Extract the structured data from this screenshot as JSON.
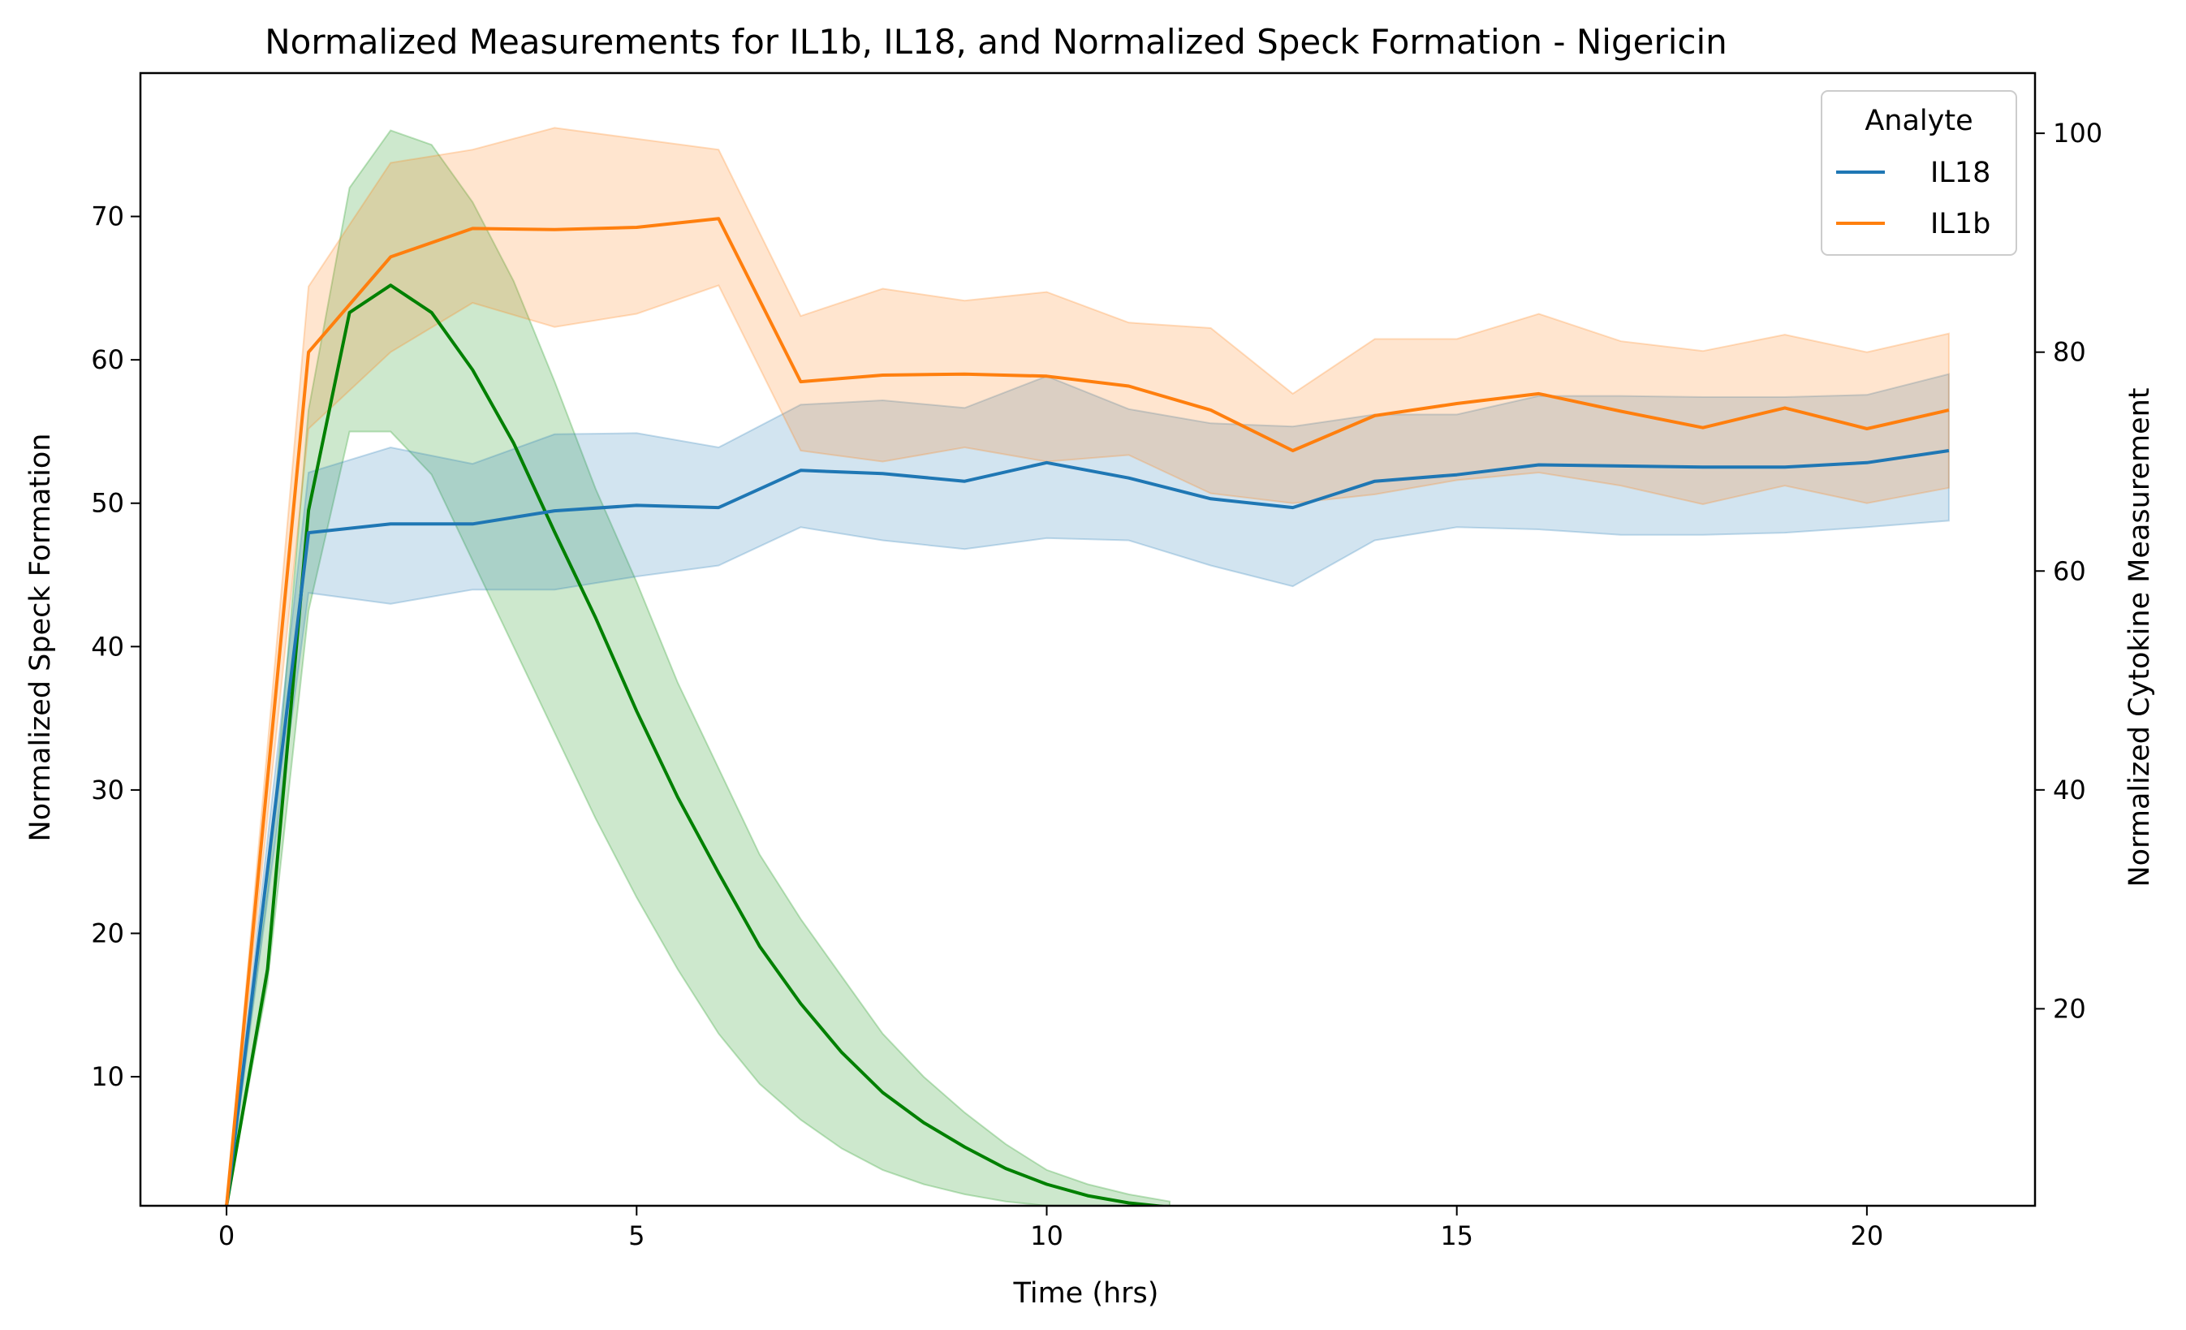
{
  "chart_data": {
    "type": "line",
    "title": "Normalized Measurements for IL1b, IL18, and Normalized Speck Formation - Nigericin",
    "xlabel": "Time (hrs)",
    "ylabel_left": "Normalized Speck Formation",
    "ylabel_right": "Normalized Cytokine Measurement",
    "xlim": [
      -1.05,
      22.05
    ],
    "ylim_left": [
      1,
      80
    ],
    "ylim_right": [
      2,
      105.5
    ],
    "x_ticks": [
      0,
      5,
      10,
      15,
      20
    ],
    "y_left_ticks": [
      10,
      20,
      30,
      40,
      50,
      60,
      70
    ],
    "y_right_ticks": [
      20,
      40,
      60,
      80,
      100
    ],
    "grid": false,
    "legend": {
      "title": "Analyte",
      "placement": "top-right",
      "entries": [
        "IL18",
        "IL1b"
      ]
    },
    "speck": {
      "axis": "left",
      "color": "#008000",
      "band_color": "#2ca02c",
      "x": [
        0,
        0.5,
        1,
        1.5,
        2,
        2.5,
        3,
        3.5,
        4,
        4.5,
        5,
        5.5,
        6,
        6.5,
        7,
        7.5,
        8,
        8.5,
        9,
        9.5,
        10,
        10.5,
        11,
        11.5
      ],
      "values": [
        1,
        17.5,
        49.5,
        63.3,
        65.2,
        63.3,
        59.3,
        54.2,
        48,
        42,
        35.5,
        29.5,
        24.2,
        19.1,
        15.1,
        11.7,
        8.9,
        6.8,
        5.1,
        3.6,
        2.5,
        1.7,
        1.2,
        0.9
      ],
      "lower": [
        1,
        16.5,
        42.5,
        55,
        55,
        52,
        46,
        40,
        34,
        28,
        22.5,
        17.5,
        13,
        9.5,
        7,
        5,
        3.5,
        2.5,
        1.8,
        1.3,
        1,
        0.8,
        0.7,
        0.7
      ],
      "upper": [
        1,
        23,
        56.5,
        72,
        76,
        75,
        71,
        65.5,
        58.5,
        51,
        44.5,
        37.5,
        31.5,
        25.5,
        21,
        17,
        13,
        10,
        7.5,
        5.3,
        3.5,
        2.5,
        1.8,
        1.3
      ]
    },
    "series": [
      {
        "name": "IL18",
        "axis": "right",
        "color": "#1f77b4",
        "x": [
          0,
          1,
          2,
          3,
          4,
          5,
          6,
          7,
          8,
          9,
          10,
          11,
          12,
          13,
          14,
          15,
          16,
          17,
          18,
          19,
          20,
          21
        ],
        "values": [
          2,
          63.5,
          64.3,
          64.3,
          65.5,
          66,
          65.8,
          69.2,
          68.9,
          68.2,
          69.9,
          68.5,
          66.6,
          65.8,
          68.2,
          68.8,
          69.7,
          69.6,
          69.5,
          69.5,
          69.9,
          71
        ],
        "lower": [
          2,
          58,
          57,
          58.3,
          58.3,
          59.5,
          60.5,
          64,
          62.8,
          62,
          63,
          62.8,
          60.5,
          58.6,
          62.8,
          64,
          63.8,
          63.3,
          63.3,
          63.5,
          64,
          64.6
        ],
        "upper": [
          2,
          69,
          71.3,
          69.8,
          72.5,
          72.6,
          71.3,
          75.2,
          75.6,
          74.9,
          77.8,
          74.8,
          73.5,
          73.2,
          74.3,
          74.3,
          76,
          76,
          75.9,
          75.9,
          76.1,
          78
        ]
      },
      {
        "name": "IL1b",
        "axis": "right",
        "color": "#ff7f0e",
        "x": [
          0,
          1,
          2,
          3,
          4,
          5,
          6,
          7,
          8,
          9,
          10,
          11,
          12,
          13,
          14,
          15,
          16,
          17,
          18,
          19,
          20,
          21
        ],
        "values": [
          2,
          80,
          88.7,
          91.3,
          91.2,
          91.4,
          92.2,
          77.3,
          77.9,
          78,
          77.8,
          76.9,
          74.7,
          71,
          74.2,
          75.3,
          76.2,
          74.6,
          73.1,
          74.9,
          73,
          74.7
        ],
        "lower": [
          2,
          73,
          80,
          84.5,
          82.3,
          83.5,
          86.1,
          71,
          70,
          71.3,
          70,
          70.6,
          67.1,
          66.2,
          67,
          68.3,
          69,
          67.8,
          66.1,
          67.8,
          66.2,
          67.6
        ],
        "upper": [
          2,
          86,
          97.3,
          98.5,
          100.5,
          99.5,
          98.5,
          83.3,
          85.8,
          84.7,
          85.5,
          82.7,
          82.2,
          76.2,
          81.2,
          81.2,
          83.5,
          81,
          80.1,
          81.6,
          80,
          81.7
        ]
      }
    ]
  }
}
